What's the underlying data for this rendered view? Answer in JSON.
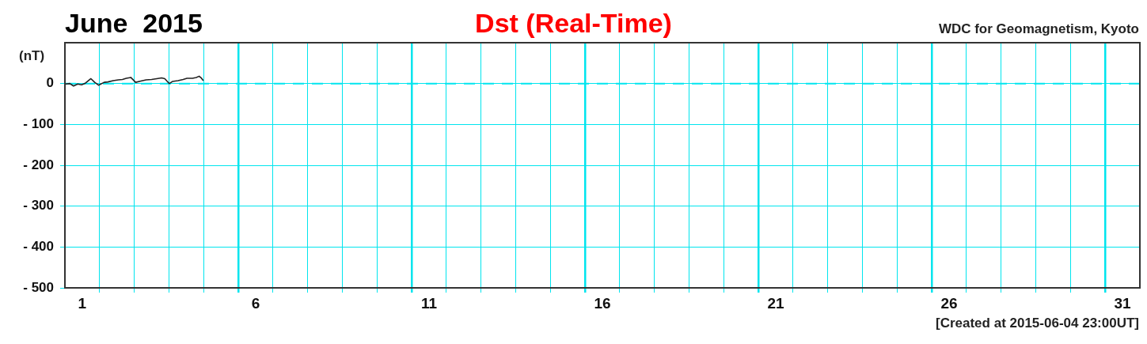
{
  "chart_data": {
    "type": "line",
    "title": "Dst (Real-Time)",
    "ylabel": "(nT)",
    "annotations": [
      "June  2015",
      "WDC for Geomagnetism, Kyoto",
      "[Created at 2015-06-04 23:00UT]"
    ],
    "series": [
      {
        "color": "#222222",
        "x": [
          1.02,
          1.14,
          1.25,
          1.37,
          1.48,
          1.59,
          1.75,
          1.86,
          1.97,
          2.13,
          2.24,
          2.39,
          2.54,
          2.66,
          2.77,
          2.9,
          3.04,
          3.19,
          3.34,
          3.5,
          3.65,
          3.79,
          3.88,
          4.01,
          4.1,
          4.26,
          4.41,
          4.52,
          4.68,
          4.79,
          4.87,
          4.94,
          4.99
        ],
        "values": [
          -1,
          0,
          -6,
          -1,
          -3,
          1,
          12,
          3,
          -4,
          3,
          4,
          7,
          9,
          10,
          13,
          15,
          3,
          6,
          9,
          10,
          12,
          14,
          12,
          0,
          5,
          7,
          10,
          13,
          13,
          15,
          18,
          13,
          7
        ]
      }
    ],
    "xlim": [
      1,
      32
    ],
    "xticks": [
      {
        "value": 1.5,
        "label": "1"
      },
      {
        "value": 2,
        "label": null
      },
      {
        "value": 3,
        "label": null
      },
      {
        "value": 4,
        "label": null
      },
      {
        "value": 5,
        "label": null
      },
      {
        "value": 6,
        "label": null
      },
      {
        "value": 6.5,
        "label": "6"
      },
      {
        "value": 7,
        "label": null
      },
      {
        "value": 8,
        "label": null
      },
      {
        "value": 9,
        "label": null
      },
      {
        "value": 10,
        "label": null
      },
      {
        "value": 11,
        "label": null
      },
      {
        "value": 11.5,
        "label": "11"
      },
      {
        "value": 12,
        "label": null
      },
      {
        "value": 13,
        "label": null
      },
      {
        "value": 14,
        "label": null
      },
      {
        "value": 15,
        "label": null
      },
      {
        "value": 16,
        "label": null
      },
      {
        "value": 16.5,
        "label": "16"
      },
      {
        "value": 17,
        "label": null
      },
      {
        "value": 18,
        "label": null
      },
      {
        "value": 19,
        "label": null
      },
      {
        "value": 20,
        "label": null
      },
      {
        "value": 21,
        "label": null
      },
      {
        "value": 21.5,
        "label": "21"
      },
      {
        "value": 22,
        "label": null
      },
      {
        "value": 23,
        "label": null
      },
      {
        "value": 24,
        "label": null
      },
      {
        "value": 25,
        "label": null
      },
      {
        "value": 26,
        "label": null
      },
      {
        "value": 26.5,
        "label": "26"
      },
      {
        "value": 27,
        "label": null
      },
      {
        "value": 28,
        "label": null
      },
      {
        "value": 29,
        "label": null
      },
      {
        "value": 30,
        "label": null
      },
      {
        "value": 31,
        "label": null
      },
      {
        "value": 31.5,
        "label": "31"
      }
    ],
    "ylim": [
      -500,
      100
    ],
    "yticks": [
      {
        "value": -500,
        "label": "- 500"
      },
      {
        "value": -400,
        "label": "- 400"
      },
      {
        "value": -300,
        "label": "- 300"
      },
      {
        "value": -200,
        "label": "- 200"
      },
      {
        "value": -100,
        "label": "- 100"
      },
      0
    ],
    "ref_lines": [
      {
        "axis": "y",
        "value": 0,
        "color": "#00e5ee",
        "line_style": "dashed"
      }
    ],
    "grid": true,
    "legend": false,
    "marker": "none",
    "line_style": "solid"
  }
}
